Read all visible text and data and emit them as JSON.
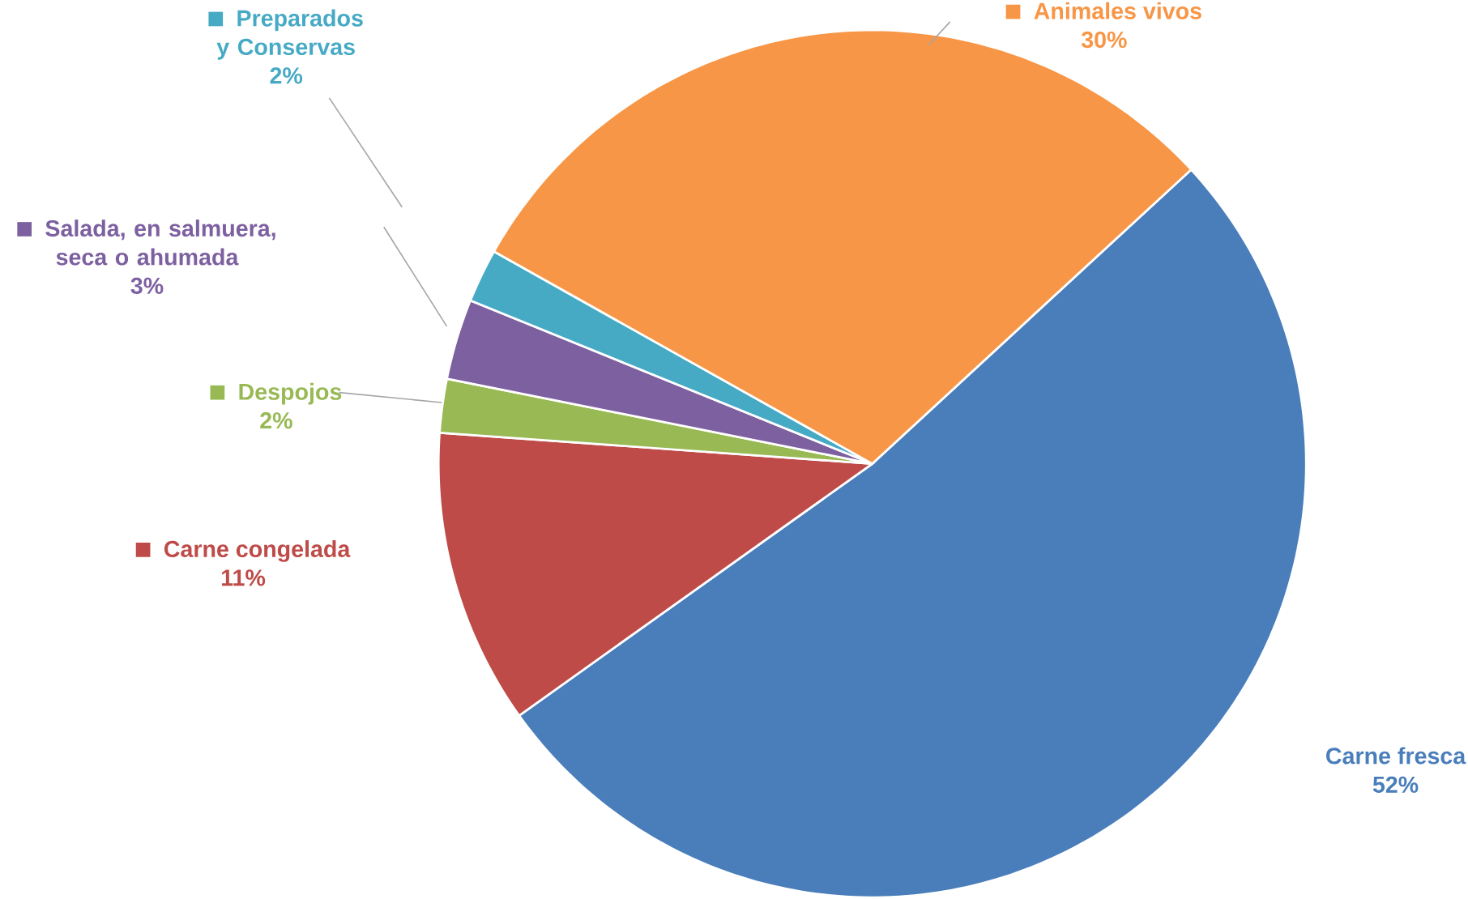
{
  "chart_data": {
    "type": "pie",
    "categories": [
      "Carne fresca",
      "Carne congelada",
      "Despojos",
      "Salada, en salmuera, seca o ahumada",
      "Preparados y Conservas",
      "Animales vivos"
    ],
    "values": [
      52,
      11,
      2,
      3,
      2,
      30
    ],
    "colors": [
      "#4a7ebb",
      "#be4b48",
      "#98b954",
      "#7d60a0",
      "#46aac5",
      "#f79646"
    ],
    "value_labels": [
      "52%",
      "11%",
      "2%",
      "3%",
      "2%",
      "30%"
    ],
    "legend": "left"
  }
}
